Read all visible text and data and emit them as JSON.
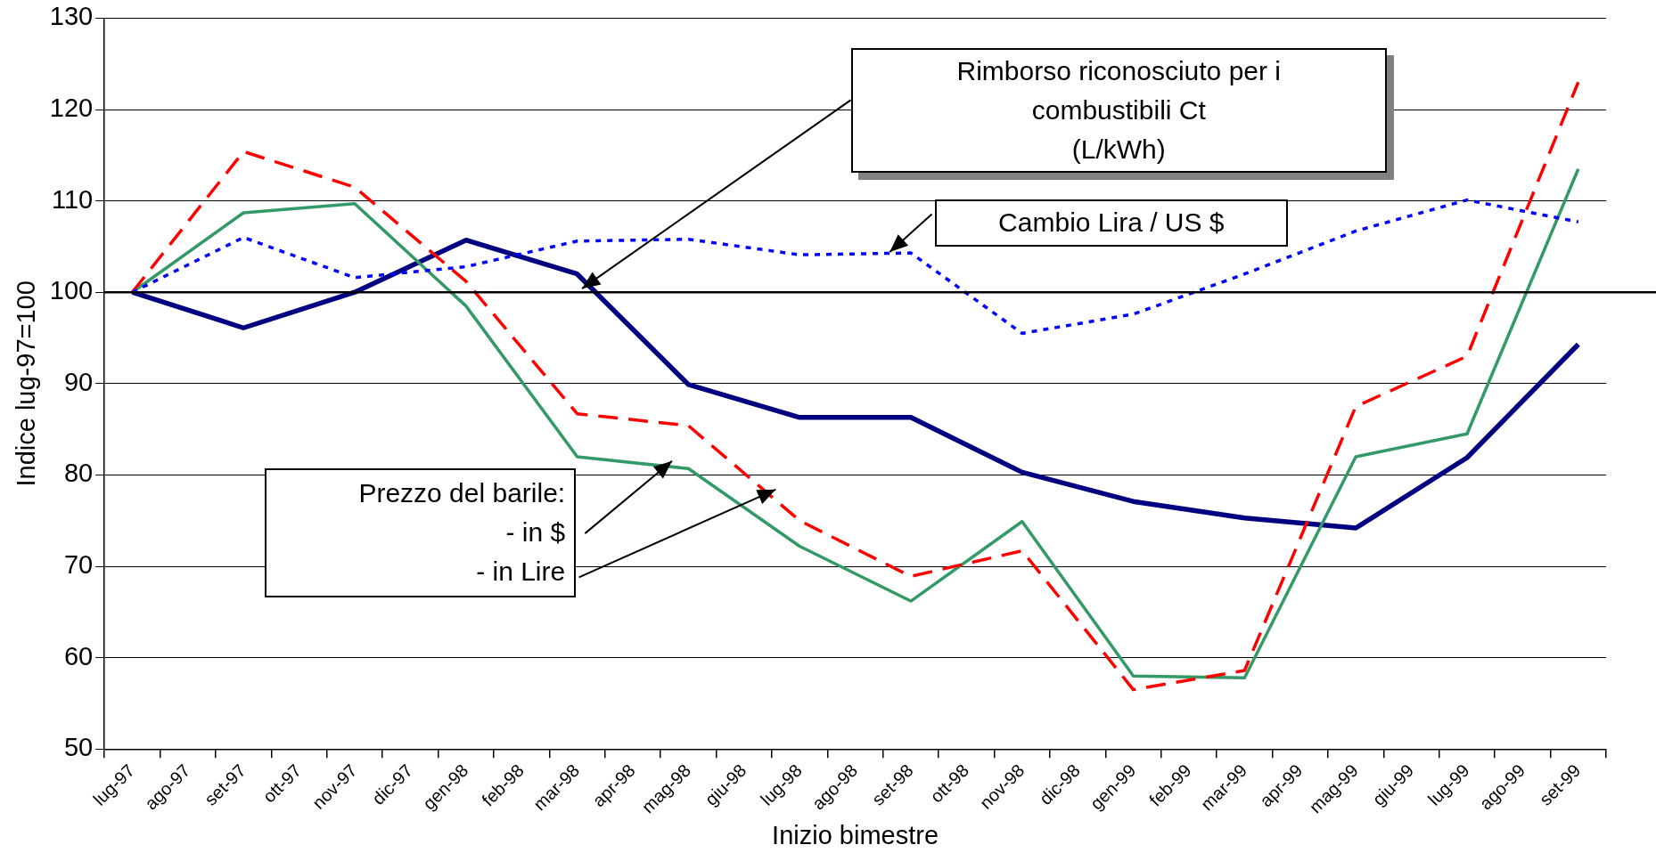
{
  "chart_data": {
    "type": "line",
    "xlabel": "Inizio bimestre",
    "ylabel": "Indice lug-97=100",
    "categories": [
      "lug-97",
      "ago-97",
      "set-97",
      "ott-97",
      "nov-97",
      "dic-97",
      "gen-98",
      "feb-98",
      "mar-98",
      "apr-98",
      "mag-98",
      "giu-98",
      "lug-98",
      "ago-98",
      "set-98",
      "ott-98",
      "nov-98",
      "dic-98",
      "gen-99",
      "feb-99",
      "mar-99",
      "apr-99",
      "mag-99",
      "giu-99",
      "lug-99",
      "ago-99",
      "set-99"
    ],
    "ylim": [
      50,
      130
    ],
    "yticks": [
      50,
      60,
      70,
      80,
      90,
      100,
      110,
      120,
      130
    ],
    "grid": "y",
    "legend": false,
    "marker": "none",
    "series": [
      {
        "color": "#0000ff",
        "line_style": "dotted",
        "values": [
          100,
          null,
          106,
          null,
          101.6,
          null,
          102.8,
          null,
          105.6,
          null,
          105.8,
          null,
          104.1,
          null,
          104.3,
          null,
          95.5,
          null,
          97.6,
          null,
          102,
          null,
          106.7,
          null,
          110.1,
          null,
          107.7
        ]
      },
      {
        "color": "#ff0000",
        "line_style": "dashed",
        "values": [
          100,
          null,
          115.4,
          null,
          111.5,
          null,
          101.2,
          null,
          86.7,
          null,
          85.4,
          null,
          75,
          null,
          68.9,
          null,
          71.7,
          null,
          56.5,
          null,
          58.6,
          null,
          87.5,
          null,
          93,
          null,
          123
        ]
      },
      {
        "color": "#339966",
        "line_style": "solid",
        "values": [
          100,
          null,
          108.7,
          null,
          109.7,
          null,
          98.5,
          null,
          82,
          null,
          80.7,
          null,
          72.2,
          null,
          66.2,
          null,
          74.9,
          null,
          58,
          null,
          57.8,
          null,
          82,
          null,
          84.5,
          null,
          113.5
        ]
      },
      {
        "color": "#000080",
        "line_style": "solid",
        "values": [
          100,
          null,
          96.1,
          null,
          100,
          null,
          105.7,
          null,
          102,
          null,
          89.9,
          null,
          86.3,
          null,
          86.3,
          null,
          80.3,
          null,
          77.1,
          null,
          75.3,
          null,
          74.2,
          null,
          81.9,
          null,
          94.3
        ]
      }
    ],
    "ref_lines": [
      {
        "axis": "y",
        "value": 100,
        "color": "#000000"
      }
    ],
    "annotations": [
      "Rimborso riconosciuto per i\ncombustibili Ct\n(L/kWh)",
      "Cambio Lira / US $",
      "Prezzo del barile:\n- in $\n- in Lire"
    ]
  }
}
